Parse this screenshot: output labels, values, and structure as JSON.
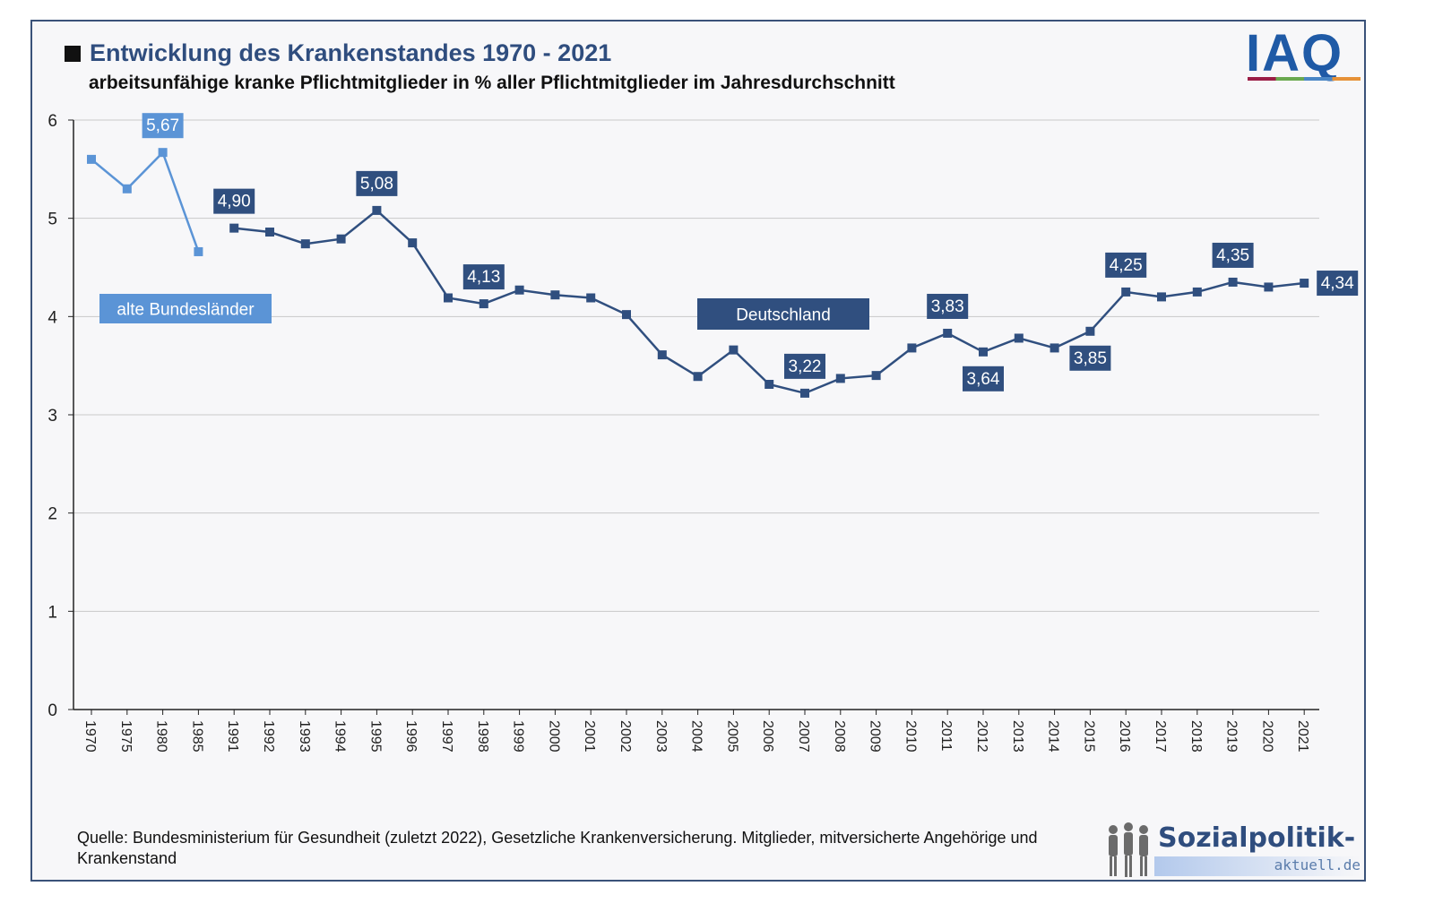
{
  "header": {
    "title": "Entwicklung des Krankenstandes 1970 - 2021",
    "subtitle": "arbeitsunfähige kranke Pflichtmitglieder in % aller Pflichtmitglieder im Jahresdurchschnitt",
    "logo": "IAQ"
  },
  "footer": {
    "source": "Quelle: Bundesministerium für Gesundheit (zuletzt 2022), Gesetzliche Krankenversicherung. Mitglieder, mitversicherte Angehörige und Krankenstand",
    "logo_name": "Sozialpolitik-",
    "logo_sub": "aktuell.de",
    "logo_icon": "people-silhouette-icon"
  },
  "chart_data": {
    "type": "line",
    "title": "Entwicklung des Krankenstandes 1970 - 2021",
    "subtitle": "arbeitsunfähige kranke Pflichtmitglieder in % aller Pflichtmitglieder im Jahresdurchschnitt",
    "xlabel": "",
    "ylabel": "",
    "ylim": [
      0,
      6
    ],
    "yticks": [
      0,
      1,
      2,
      3,
      4,
      5,
      6
    ],
    "grid": true,
    "categories": [
      "1970",
      "1975",
      "1980",
      "1985",
      "1991",
      "1992",
      "1993",
      "1994",
      "1995",
      "1996",
      "1997",
      "1998",
      "1999",
      "2000",
      "2001",
      "2002",
      "2003",
      "2004",
      "2005",
      "2006",
      "2007",
      "2008",
      "2009",
      "2010",
      "2011",
      "2012",
      "2013",
      "2014",
      "2015",
      "2016",
      "2017",
      "2018",
      "2019",
      "2020",
      "2021"
    ],
    "series": [
      {
        "name": "alte Bundesländer",
        "color": "#5b94d6",
        "points": [
          {
            "x": "1970",
            "y": 5.6
          },
          {
            "x": "1975",
            "y": 5.3
          },
          {
            "x": "1980",
            "y": 5.67,
            "label": "5,67"
          },
          {
            "x": "1985",
            "y": 4.66
          }
        ]
      },
      {
        "name": "Deutschland",
        "color": "#304f7f",
        "points": [
          {
            "x": "1991",
            "y": 4.9,
            "label": "4,90"
          },
          {
            "x": "1992",
            "y": 4.86
          },
          {
            "x": "1993",
            "y": 4.74
          },
          {
            "x": "1994",
            "y": 4.79
          },
          {
            "x": "1995",
            "y": 5.08,
            "label": "5,08"
          },
          {
            "x": "1996",
            "y": 4.75
          },
          {
            "x": "1997",
            "y": 4.19
          },
          {
            "x": "1998",
            "y": 4.13,
            "label": "4,13"
          },
          {
            "x": "1999",
            "y": 4.27
          },
          {
            "x": "2000",
            "y": 4.22
          },
          {
            "x": "2001",
            "y": 4.19
          },
          {
            "x": "2002",
            "y": 4.02
          },
          {
            "x": "2003",
            "y": 3.61
          },
          {
            "x": "2004",
            "y": 3.39
          },
          {
            "x": "2005",
            "y": 3.66
          },
          {
            "x": "2006",
            "y": 3.31
          },
          {
            "x": "2007",
            "y": 3.22,
            "label": "3,22"
          },
          {
            "x": "2008",
            "y": 3.37
          },
          {
            "x": "2009",
            "y": 3.4
          },
          {
            "x": "2010",
            "y": 3.68
          },
          {
            "x": "2011",
            "y": 3.83,
            "label": "3,83"
          },
          {
            "x": "2012",
            "y": 3.64,
            "label": "3,64"
          },
          {
            "x": "2013",
            "y": 3.78
          },
          {
            "x": "2014",
            "y": 3.68
          },
          {
            "x": "2015",
            "y": 3.85,
            "label": "3,85"
          },
          {
            "x": "2016",
            "y": 4.25,
            "label": "4,25"
          },
          {
            "x": "2017",
            "y": 4.2
          },
          {
            "x": "2018",
            "y": 4.25
          },
          {
            "x": "2019",
            "y": 4.35,
            "label": "4,35"
          },
          {
            "x": "2020",
            "y": 4.3
          },
          {
            "x": "2021",
            "y": 4.34,
            "label": "4,34"
          }
        ]
      }
    ]
  }
}
